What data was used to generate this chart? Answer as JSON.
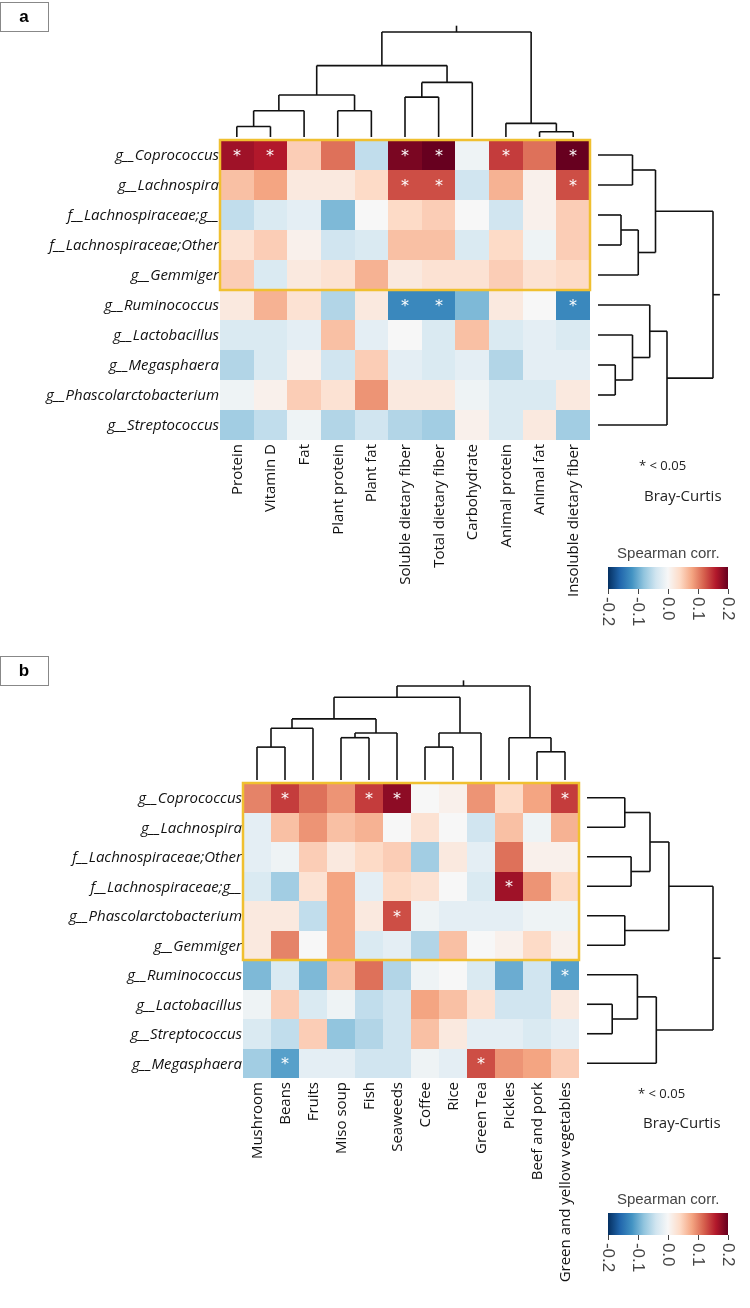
{
  "chart_data": [
    {
      "type": "heatmap",
      "title": "a",
      "clabel": "Spearman corr.",
      "categories": [
        "Protein",
        "Vitamin D",
        "Fat",
        "Plant protein",
        "Plant fat",
        "Soluble dietary fiber",
        "Total dietary fiber",
        "Carbohydrate",
        "Animal protein",
        "Animal fat",
        "Insoluble dietary fiber"
      ],
      "y_categories": [
        "g__Coprococcus",
        "g__Lachnospira",
        "f__Lachnospiraceae;g__",
        "f__Lachnospiraceae;Other",
        "g__Gemmiger",
        "g__Ruminococcus",
        "g__Lactobacillus",
        "g__Megasphaera",
        "g__Phascolarctobacterium",
        "g__Streptococcus"
      ],
      "cells": [
        [
          0.17,
          0.16,
          0.05,
          0.11,
          -0.05,
          0.19,
          0.2,
          -0.01,
          0.14,
          0.11,
          0.2
        ],
        [
          0.06,
          0.08,
          0.02,
          0.02,
          0.04,
          0.13,
          0.13,
          -0.04,
          0.07,
          0.01,
          0.13
        ],
        [
          -0.05,
          -0.03,
          -0.02,
          -0.09,
          0.0,
          0.04,
          0.05,
          0.0,
          -0.04,
          0.01,
          0.05
        ],
        [
          0.03,
          0.05,
          0.01,
          -0.04,
          -0.03,
          0.06,
          0.06,
          -0.03,
          0.04,
          -0.01,
          0.05
        ],
        [
          0.05,
          -0.03,
          0.02,
          0.03,
          0.07,
          0.02,
          0.03,
          0.03,
          0.05,
          0.03,
          0.04
        ],
        [
          0.02,
          0.07,
          0.03,
          -0.06,
          0.02,
          -0.13,
          -0.13,
          -0.09,
          0.02,
          0.0,
          -0.13
        ],
        [
          -0.03,
          -0.03,
          -0.02,
          0.06,
          -0.02,
          0.0,
          -0.03,
          0.06,
          -0.03,
          -0.02,
          -0.03
        ],
        [
          -0.06,
          -0.03,
          0.01,
          -0.04,
          0.05,
          -0.02,
          -0.03,
          -0.02,
          -0.06,
          -0.02,
          -0.02
        ],
        [
          -0.01,
          0.01,
          0.05,
          0.03,
          0.09,
          0.02,
          0.02,
          -0.01,
          -0.03,
          -0.03,
          0.02
        ],
        [
          -0.07,
          -0.05,
          -0.01,
          -0.06,
          -0.04,
          -0.06,
          -0.07,
          0.01,
          -0.03,
          0.02,
          -0.07
        ]
      ],
      "cell_labels": [
        [
          "*",
          "*",
          null,
          null,
          null,
          "*",
          "*",
          null,
          "*",
          null,
          "*"
        ],
        [
          null,
          null,
          null,
          null,
          null,
          "*",
          "*",
          null,
          null,
          null,
          "*"
        ],
        [
          null,
          null,
          null,
          null,
          null,
          null,
          null,
          null,
          null,
          null,
          null
        ],
        [
          null,
          null,
          null,
          null,
          null,
          null,
          null,
          null,
          null,
          null,
          null
        ],
        [
          null,
          null,
          null,
          null,
          null,
          null,
          null,
          null,
          null,
          null,
          null
        ],
        [
          null,
          null,
          null,
          null,
          null,
          "*",
          "*",
          null,
          null,
          null,
          "*"
        ],
        [
          null,
          null,
          null,
          null,
          null,
          null,
          null,
          null,
          null,
          null,
          null
        ],
        [
          null,
          null,
          null,
          null,
          null,
          null,
          null,
          null,
          null,
          null,
          null
        ],
        [
          null,
          null,
          null,
          null,
          null,
          null,
          null,
          null,
          null,
          null,
          null
        ],
        [
          null,
          null,
          null,
          null,
          null,
          null,
          null,
          null,
          null,
          null,
          null
        ]
      ],
      "clim": [
        -0.2,
        0.2
      ],
      "cticks": [
        -0.2,
        -0.1,
        {
          "value": 0,
          "label": "0.0"
        },
        0.1,
        0.2
      ],
      "annotations": [
        "* < 0.05",
        "Bray-Curtis"
      ]
    },
    {
      "type": "heatmap",
      "title": "b",
      "clabel": "Spearman corr.",
      "categories": [
        "Mushroom",
        "Beans",
        "Fruits",
        "Miso soup",
        "Fish",
        "Seaweeds",
        "Coffee",
        "Rice",
        "Green Tea",
        "Pickles",
        "Beef and pork",
        "Green and yellow vegetables"
      ],
      "y_categories": [
        "g__Coprococcus",
        "g__Lachnospira",
        "f__Lachnospiraceae;Other",
        "f__Lachnospiraceae;g__",
        "g__Phascolarctobacterium",
        "g__Gemmiger",
        "g__Ruminococcus",
        "g__Lactobacillus",
        "g__Streptococcus",
        "g__Megasphaera"
      ],
      "cells": [
        [
          0.1,
          0.14,
          0.11,
          0.09,
          0.14,
          0.18,
          0.0,
          0.01,
          0.09,
          0.04,
          0.08,
          0.14
        ],
        [
          -0.02,
          0.06,
          0.09,
          0.06,
          0.07,
          0.0,
          0.03,
          0.0,
          -0.04,
          0.06,
          -0.01,
          0.07
        ],
        [
          -0.02,
          -0.01,
          0.05,
          0.02,
          0.04,
          0.05,
          -0.07,
          0.02,
          -0.02,
          0.11,
          0.01,
          0.01
        ],
        [
          -0.03,
          -0.07,
          0.03,
          0.08,
          -0.02,
          0.04,
          0.03,
          0.0,
          -0.03,
          0.17,
          0.09,
          0.04
        ],
        [
          0.02,
          0.02,
          -0.05,
          0.08,
          0.02,
          0.13,
          -0.01,
          -0.02,
          -0.02,
          -0.02,
          -0.01,
          -0.01
        ],
        [
          0.02,
          0.1,
          0.0,
          0.08,
          -0.03,
          -0.02,
          -0.06,
          0.06,
          0.0,
          0.01,
          0.04,
          0.01
        ],
        [
          -0.09,
          -0.03,
          -0.09,
          0.06,
          0.11,
          -0.06,
          -0.01,
          0.0,
          -0.03,
          -0.1,
          -0.04,
          -0.11
        ],
        [
          -0.01,
          0.05,
          -0.03,
          -0.01,
          -0.05,
          -0.04,
          0.08,
          0.06,
          0.03,
          -0.04,
          -0.04,
          0.02
        ],
        [
          -0.03,
          -0.05,
          0.05,
          -0.08,
          -0.06,
          -0.04,
          0.06,
          0.02,
          -0.02,
          -0.02,
          -0.03,
          -0.02
        ],
        [
          -0.07,
          -0.11,
          -0.02,
          -0.02,
          -0.04,
          -0.04,
          -0.01,
          -0.02,
          0.13,
          0.09,
          0.08,
          0.05
        ]
      ],
      "cell_labels": [
        [
          null,
          "*",
          null,
          null,
          "*",
          "*",
          null,
          null,
          null,
          null,
          null,
          "*"
        ],
        [
          null,
          null,
          null,
          null,
          null,
          null,
          null,
          null,
          null,
          null,
          null,
          null
        ],
        [
          null,
          null,
          null,
          null,
          null,
          null,
          null,
          null,
          null,
          null,
          null,
          null
        ],
        [
          null,
          null,
          null,
          null,
          null,
          null,
          null,
          null,
          null,
          "*",
          null,
          null
        ],
        [
          null,
          null,
          null,
          null,
          null,
          "*",
          null,
          null,
          null,
          null,
          null,
          null
        ],
        [
          null,
          null,
          null,
          null,
          null,
          null,
          null,
          null,
          null,
          null,
          null,
          null
        ],
        [
          null,
          null,
          null,
          null,
          null,
          null,
          null,
          null,
          null,
          null,
          null,
          "*"
        ],
        [
          null,
          null,
          null,
          null,
          null,
          null,
          null,
          null,
          null,
          null,
          null,
          null
        ],
        [
          null,
          null,
          null,
          null,
          null,
          null,
          null,
          null,
          null,
          null,
          null,
          null
        ],
        [
          null,
          "*",
          null,
          null,
          null,
          null,
          null,
          null,
          "*",
          null,
          null,
          null
        ]
      ],
      "clim": [
        -0.2,
        0.2
      ],
      "cticks": [
        -0.2,
        -0.1,
        {
          "value": 0,
          "label": "0.0"
        },
        0.1,
        0.2
      ],
      "annotations": [
        "* < 0.05",
        "Bray-Curtis"
      ]
    }
  ]
}
